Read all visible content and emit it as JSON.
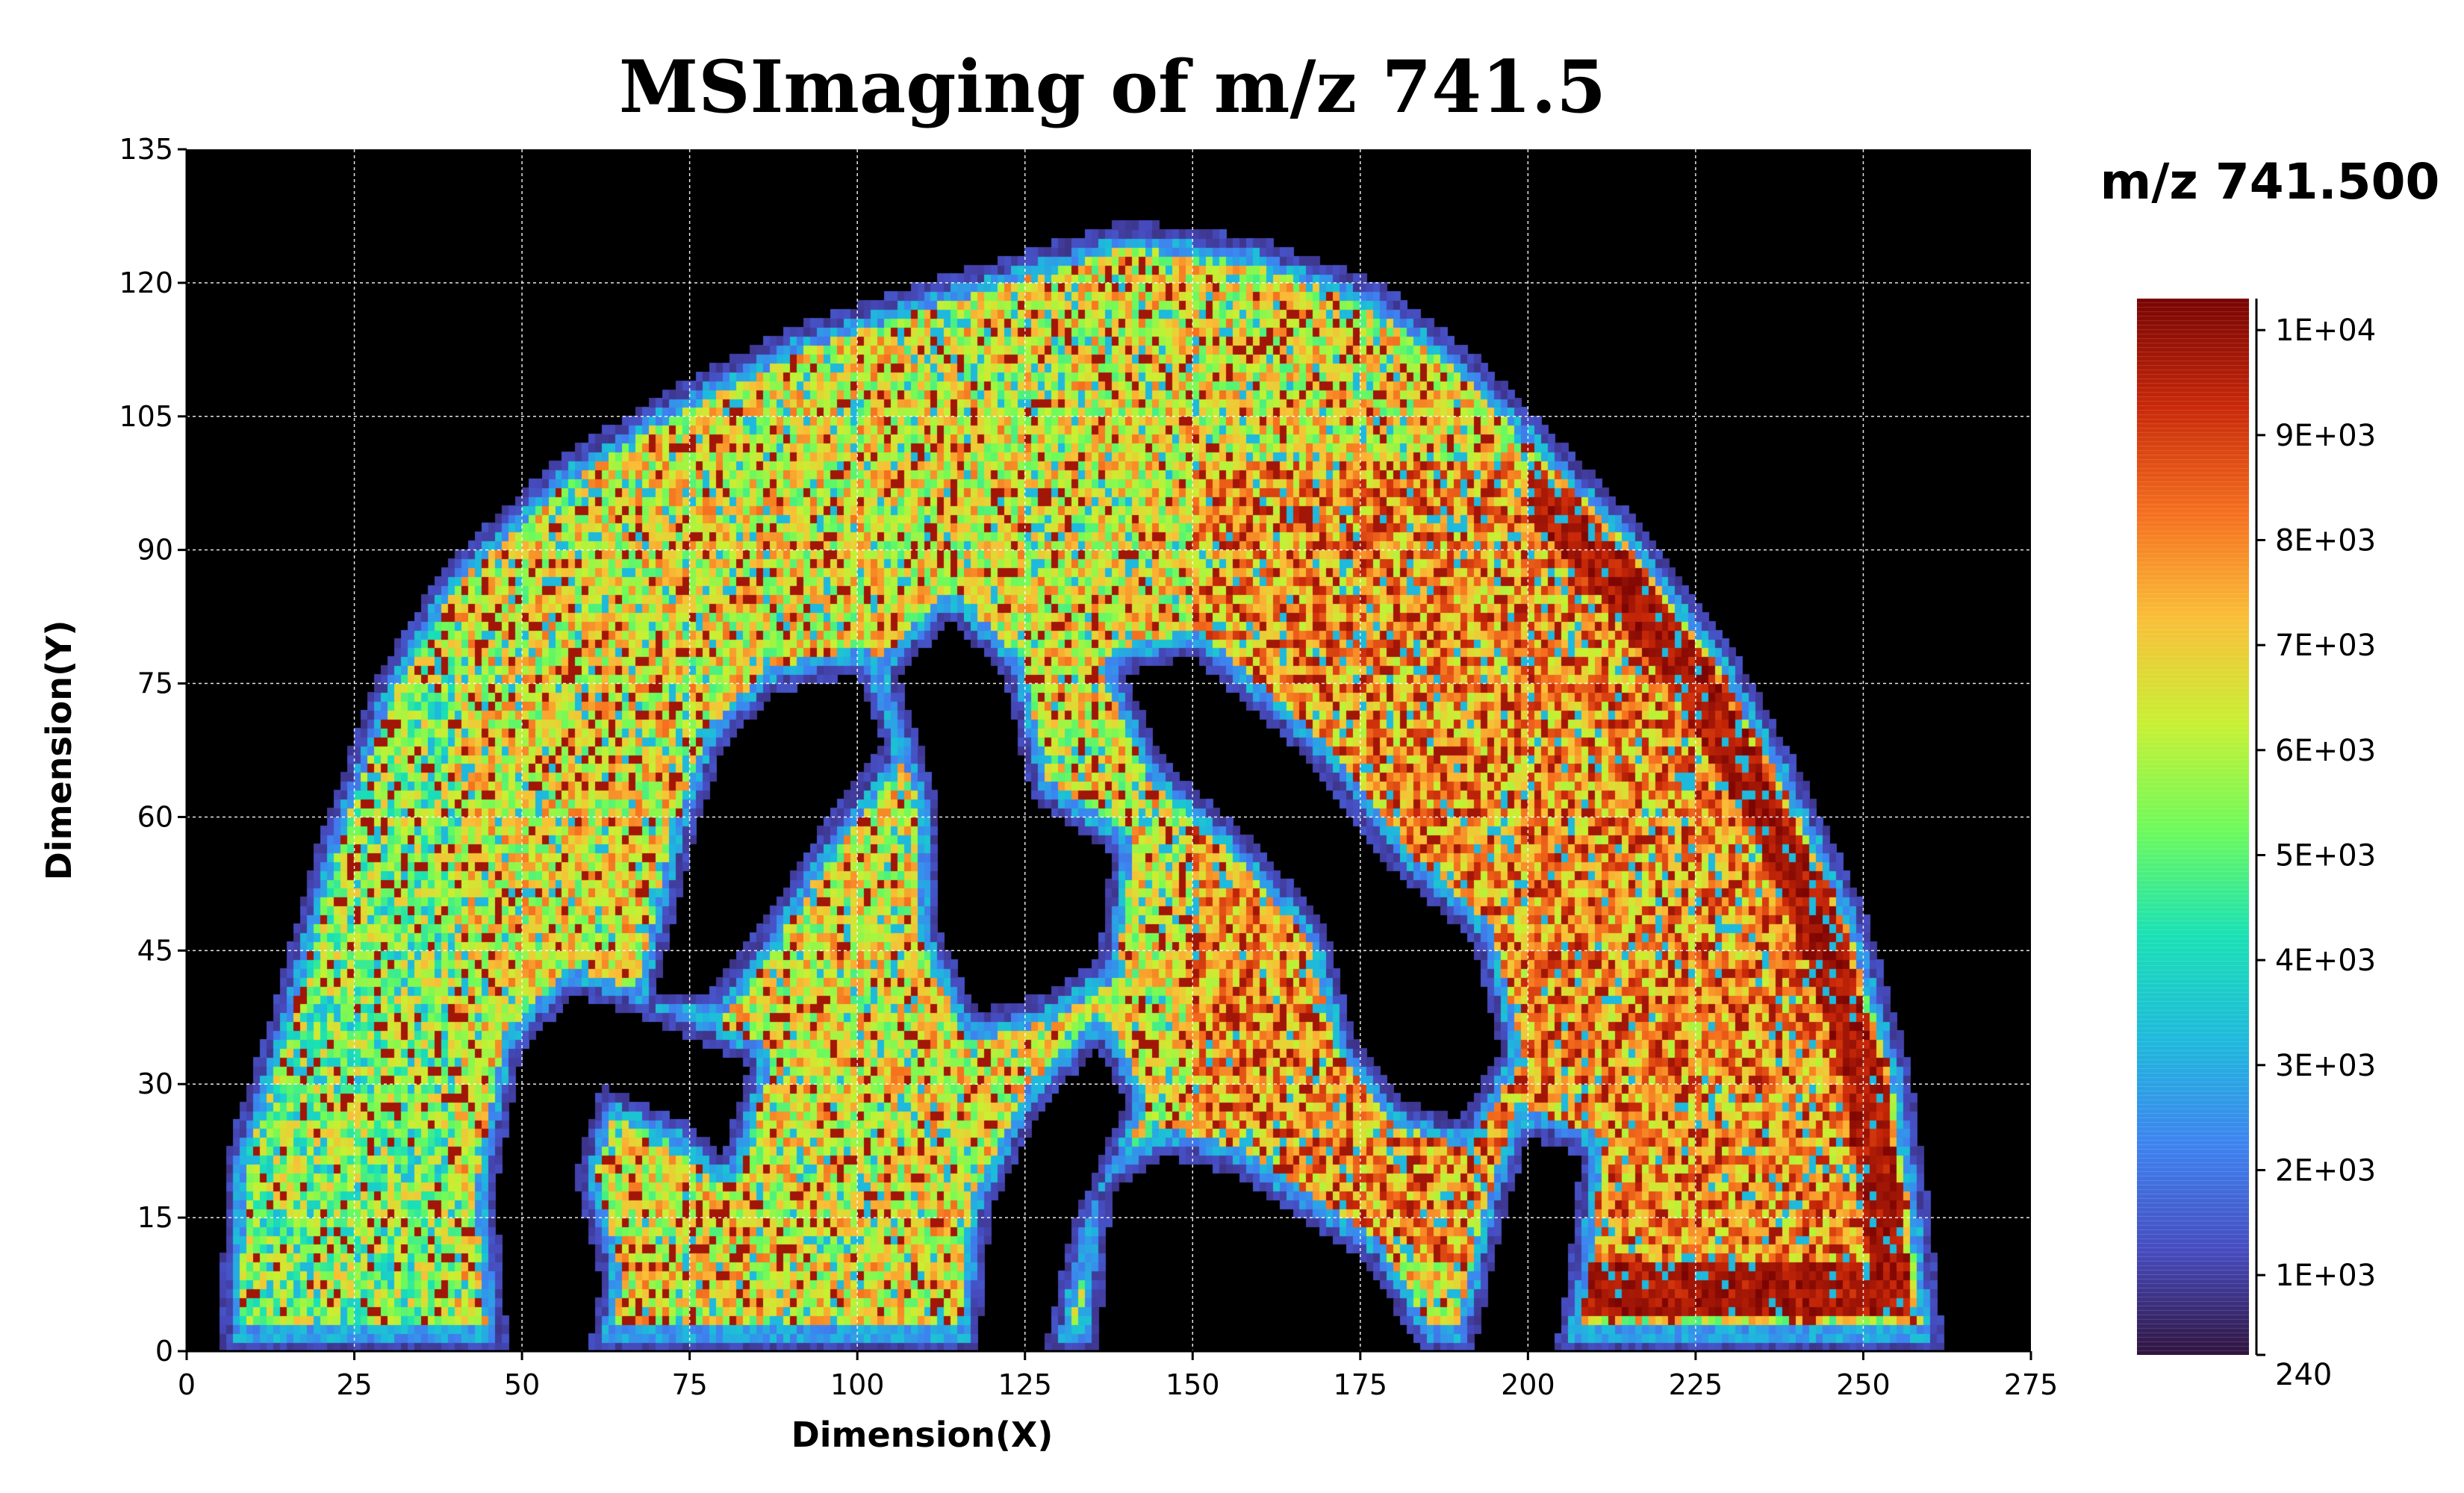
{
  "chart_data": {
    "type": "heatmap",
    "title": "MSImaging of m/z 741.5",
    "xlabel": "Dimension(X)",
    "ylabel": "Dimension(Y)",
    "xlim": [
      0,
      275
    ],
    "ylim": [
      0,
      135
    ],
    "x_ticks": [
      "0",
      "25",
      "50",
      "75",
      "100",
      "125",
      "150",
      "175",
      "200",
      "225",
      "250",
      "275"
    ],
    "y_ticks": [
      "0",
      "15",
      "30",
      "45",
      "60",
      "75",
      "90",
      "105",
      "120",
      "135"
    ],
    "grid": true,
    "background": "#000000",
    "colormap": "turbo",
    "legend": {
      "title": "m/z 741.500",
      "placement": "right",
      "labels": [
        "1E+04",
        "9E+03",
        "8E+03",
        "7E+03",
        "6E+03",
        "5E+03",
        "4E+03",
        "3E+03",
        "2E+03",
        "1E+03",
        "240"
      ],
      "label_values": [
        10000,
        9000,
        8000,
        7000,
        6000,
        5000,
        4000,
        3000,
        2000,
        1000,
        240
      ],
      "min": 240,
      "max": 10300
    },
    "tissue_region": {
      "description_values": "approximate pixel intensities of a brain section, dorsal arc with sulci",
      "x_range": [
        5,
        262
      ],
      "y_range": [
        0,
        128
      ]
    }
  }
}
